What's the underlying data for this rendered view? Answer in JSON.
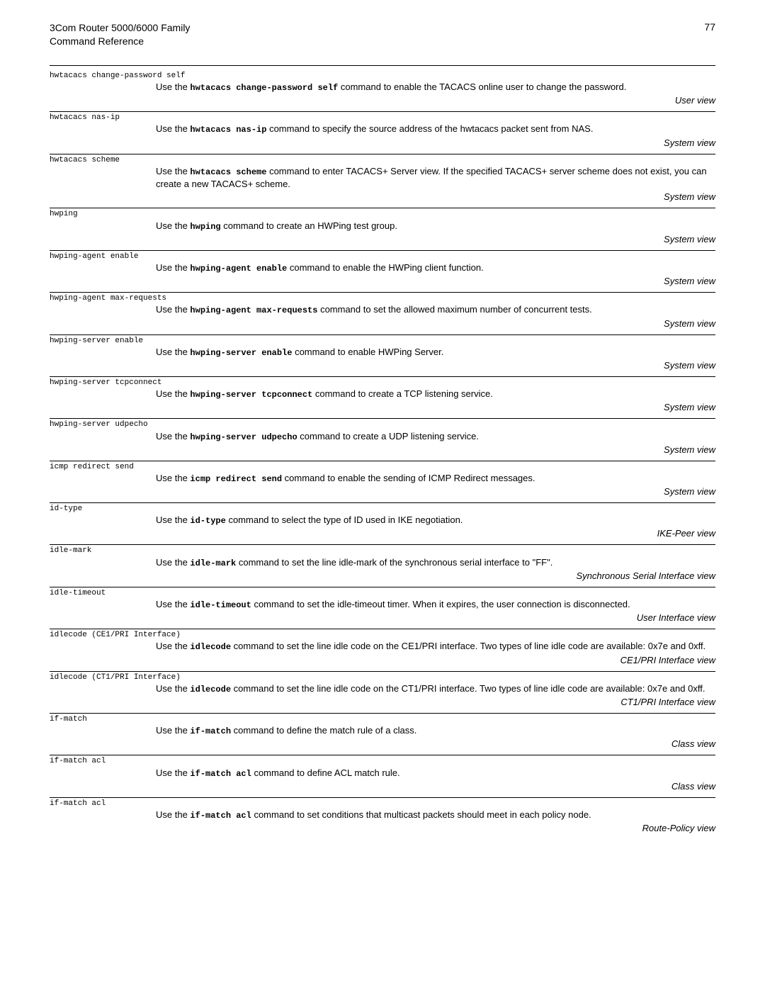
{
  "header": {
    "title_line1": "3Com Router 5000/6000 Family",
    "title_line2": "Command Reference",
    "page_number": "77"
  },
  "entries": [
    {
      "cmd": "hwtacacs change-password self",
      "prefix": "Use the ",
      "mono": "hwtacacs change-password self",
      "suffix": " command to enable the TACACS online user to change the password.",
      "view": "User view"
    },
    {
      "cmd": "hwtacacs nas-ip",
      "prefix": "Use the ",
      "mono": "hwtacacs nas-ip",
      "suffix": " command to specify the source address of the hwtacacs packet sent from NAS.",
      "view": "System view"
    },
    {
      "cmd": "hwtacacs scheme",
      "prefix": "Use the ",
      "mono": "hwtacacs scheme",
      "suffix": " command to enter TACACS+ Server view. If the specified TACACS+ server scheme does not exist, you can create a new TACACS+ scheme.",
      "view": "System view"
    },
    {
      "cmd": "hwping",
      "prefix": "Use the ",
      "mono": "hwping",
      "suffix": " command to create an HWPing test group.",
      "view": "System view"
    },
    {
      "cmd": "hwping-agent enable",
      "prefix": "Use the ",
      "mono": "hwping-agent enable",
      "suffix": " command to enable the HWPing client function.",
      "view": "System view"
    },
    {
      "cmd": "hwping-agent max-requests",
      "prefix": "Use the ",
      "mono": "hwping-agent max-requests",
      "suffix": " command to set the allowed maximum number of concurrent tests.",
      "view": "System view"
    },
    {
      "cmd": "hwping-server enable",
      "prefix": "Use the ",
      "mono": "hwping-server enable",
      "suffix": " command to enable HWPing Server.",
      "view": "System view"
    },
    {
      "cmd": "hwping-server tcpconnect",
      "prefix": "Use the ",
      "mono": "hwping-server tcpconnect",
      "suffix": " command to create a TCP listening service.",
      "view": "System view"
    },
    {
      "cmd": "hwping-server udpecho",
      "prefix": "Use the ",
      "mono": "hwping-server udpecho",
      "suffix": " command to create a UDP listening service.",
      "view": "System view"
    },
    {
      "cmd": "icmp redirect send",
      "prefix": "Use the ",
      "mono": "icmp redirect send",
      "suffix": " command to enable the sending of ICMP Redirect messages.",
      "view": "System view"
    },
    {
      "cmd": "id-type",
      "prefix": "Use the ",
      "mono": "id-type",
      "suffix": " command to select the type of ID used in IKE negotiation.",
      "view": "IKE-Peer view"
    },
    {
      "cmd": "idle-mark",
      "prefix": "Use the ",
      "mono": "idle-mark",
      "suffix": " command to set the line idle-mark of the synchronous serial interface to \"FF\".",
      "view": "Synchronous Serial Interface view"
    },
    {
      "cmd": "idle-timeout",
      "prefix": "Use the ",
      "mono": "idle-timeout",
      "suffix": " command to set the idle-timeout timer. When it expires, the user connection is disconnected.",
      "view": "User Interface view"
    },
    {
      "cmd": "idlecode (CE1/PRI Interface)",
      "prefix": "Use the ",
      "mono": "idlecode",
      "suffix": " command to set the line idle code on the CE1/PRI interface. Two types of line idle code are available: 0x7e and 0xff.",
      "view": "CE1/PRI Interface view"
    },
    {
      "cmd": "idlecode (CT1/PRI Interface)",
      "prefix": "Use the ",
      "mono": "idlecode",
      "suffix": " command to set the line idle code on the CT1/PRI interface. Two types of line idle code are available: 0x7e and 0xff.",
      "view": "CT1/PRI Interface view"
    },
    {
      "cmd": "if-match",
      "prefix": "Use the ",
      "mono": "if-match",
      "suffix": " command to define the match rule of a class.",
      "view": "Class view"
    },
    {
      "cmd": "if-match acl",
      "prefix": "Use the ",
      "mono": "if-match acl",
      "suffix": " command to define ACL match rule.",
      "view": "Class view"
    },
    {
      "cmd": "if-match acl",
      "prefix": "Use the ",
      "mono": "if-match acl",
      "suffix": " command to set conditions that multicast packets should meet in each policy node.",
      "view": "Route-Policy view"
    }
  ]
}
